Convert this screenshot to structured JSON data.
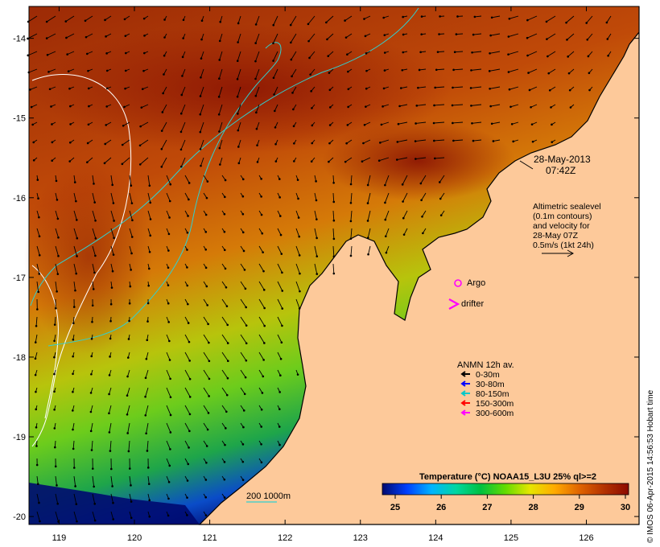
{
  "map": {
    "colors": {
      "land": "#fdc99a",
      "ocean_warm": "#a52a06",
      "ocean_cool": "#1f9a3c",
      "coast": "#000000",
      "contour": "#ffffff",
      "isobath": "#30d0d0"
    },
    "lon_ticks": [
      "119",
      "120",
      "121",
      "122",
      "123",
      "124",
      "125",
      "126"
    ],
    "lat_ticks": [
      "-14",
      "-15",
      "-16",
      "-17",
      "-18",
      "-19",
      "-20"
    ],
    "lon_range": [
      118.6,
      126.7
    ],
    "lat_range": [
      -20.1,
      -13.6
    ]
  },
  "annotations": {
    "date": "28-May-2013",
    "time": "07:42Z",
    "altimetry_lines": [
      "Altimetric sealevel",
      "(0.1m contours)",
      "and velocity for",
      "28-May 07Z",
      "0.5m/s (1kt 24h)"
    ],
    "argo_label": "Argo",
    "drifter_label": "drifter",
    "isobath_label": "200  1000m"
  },
  "anmn": {
    "title": "ANMN 12h av.",
    "items": [
      {
        "label": "0-30m",
        "color": "#000000"
      },
      {
        "label": "30-80m",
        "color": "#0000ff"
      },
      {
        "label": "80-150m",
        "color": "#00c8c8"
      },
      {
        "label": "150-300m",
        "color": "#ff0000"
      },
      {
        "label": "300-600m",
        "color": "#ff00ff"
      }
    ]
  },
  "colorbar": {
    "title": "Temperature (°C) NOAA15_L3U 25% ql>=2",
    "ticks": [
      "25",
      "26",
      "27",
      "28",
      "29",
      "30"
    ],
    "gradient": [
      "#000a6e",
      "#0040ff",
      "#00b4ff",
      "#00d7a0",
      "#00c040",
      "#64dc00",
      "#e6e600",
      "#ffaa00",
      "#e06400",
      "#b43200",
      "#8c0a00"
    ]
  },
  "footer": {
    "credit": "© IMOS 06-Apr-2015 14:56:53 Hobart time"
  }
}
